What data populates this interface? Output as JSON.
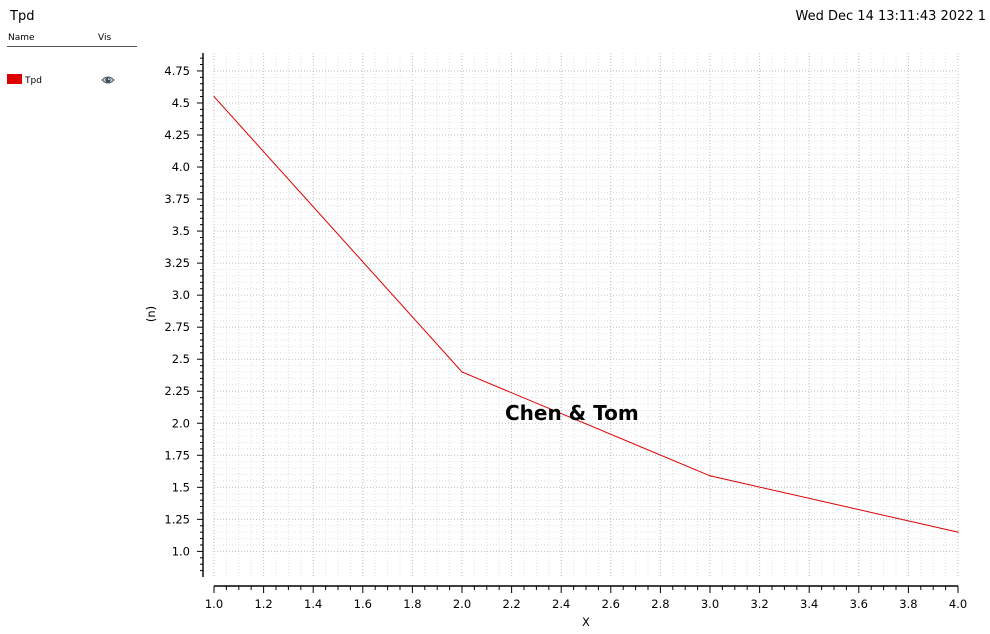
{
  "header": {
    "title": "Tpd",
    "datetime": "Wed Dec 14 13:11:43 2022  1"
  },
  "legend": {
    "name_header": "Name",
    "vis_header": "Vis",
    "items": [
      {
        "label": "Tpd",
        "color": "#dd0000",
        "icon": "eye-icon"
      }
    ]
  },
  "annotation": "Chen & Tom",
  "chart_data": {
    "type": "line",
    "xlabel": "X",
    "ylabel": "(n)",
    "xlim": [
      1.0,
      4.0
    ],
    "ylim": [
      0.8,
      4.89
    ],
    "xticks": [
      "1.0",
      "1.2",
      "1.4",
      "1.6",
      "1.8",
      "2.0",
      "2.2",
      "2.4",
      "2.6",
      "2.8",
      "3.0",
      "3.2",
      "3.4",
      "3.6",
      "3.8",
      "4.0"
    ],
    "yticks": [
      "1.0",
      "1.25",
      "1.5",
      "1.75",
      "2.0",
      "2.25",
      "2.5",
      "2.75",
      "3.0",
      "3.25",
      "3.5",
      "3.75",
      "4.0",
      "4.25",
      "4.5",
      "4.75"
    ],
    "grid": true,
    "series": [
      {
        "name": "Tpd",
        "color": "#dd0000",
        "x": [
          1.0,
          2.0,
          3.0,
          4.0
        ],
        "y": [
          4.55,
          2.4,
          1.59,
          1.15
        ]
      }
    ]
  }
}
